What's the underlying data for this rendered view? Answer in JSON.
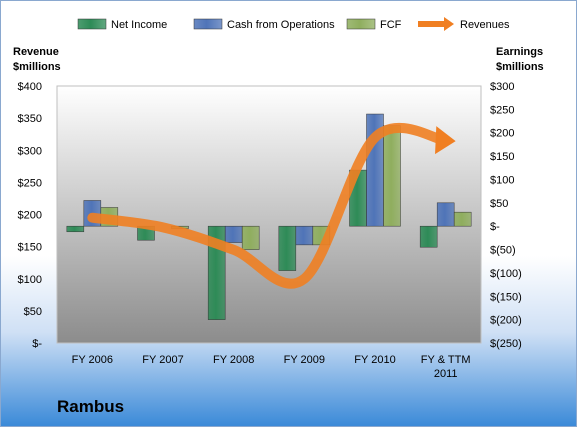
{
  "company": "Rambus",
  "chart_data": {
    "type": "bar",
    "categories": [
      "FY 2006",
      "FY 2007",
      "FY 2008",
      "FY 2009",
      "FY 2010",
      "FY & TTM 2011"
    ],
    "left_axis": {
      "title": "Revenue $millions",
      "ylim": [
        0,
        400
      ],
      "ticks": [
        "$-",
        "$50",
        "$100",
        "$150",
        "$200",
        "$250",
        "$300",
        "$350",
        "$400"
      ]
    },
    "right_axis": {
      "title": "Earnings $millions",
      "ylim": [
        -250,
        300
      ],
      "ticks": [
        "$(250)",
        "$(200)",
        "$(150)",
        "$(100)",
        "$(50)",
        "$-",
        "$50",
        "$100",
        "$150",
        "$200",
        "$250",
        "$300"
      ]
    },
    "series": [
      {
        "name": "Net Income",
        "axis": "right",
        "color": "#2e8b57",
        "values": [
          -12,
          -30,
          -200,
          -95,
          120,
          -45
        ]
      },
      {
        "name": "Cash from Operations",
        "axis": "right",
        "color": "#4f74b8",
        "values": [
          55,
          0,
          -35,
          -40,
          240,
          50
        ]
      },
      {
        "name": "FCF",
        "axis": "right",
        "color": "#8fae5e",
        "values": [
          40,
          -5,
          -50,
          -40,
          215,
          30
        ]
      },
      {
        "name": "Revenues",
        "axis": "left",
        "type": "line",
        "color": "#f07f22",
        "values": [
          195,
          180,
          145,
          100,
          320,
          315
        ]
      }
    ],
    "legend_position": "top",
    "grid": false
  }
}
